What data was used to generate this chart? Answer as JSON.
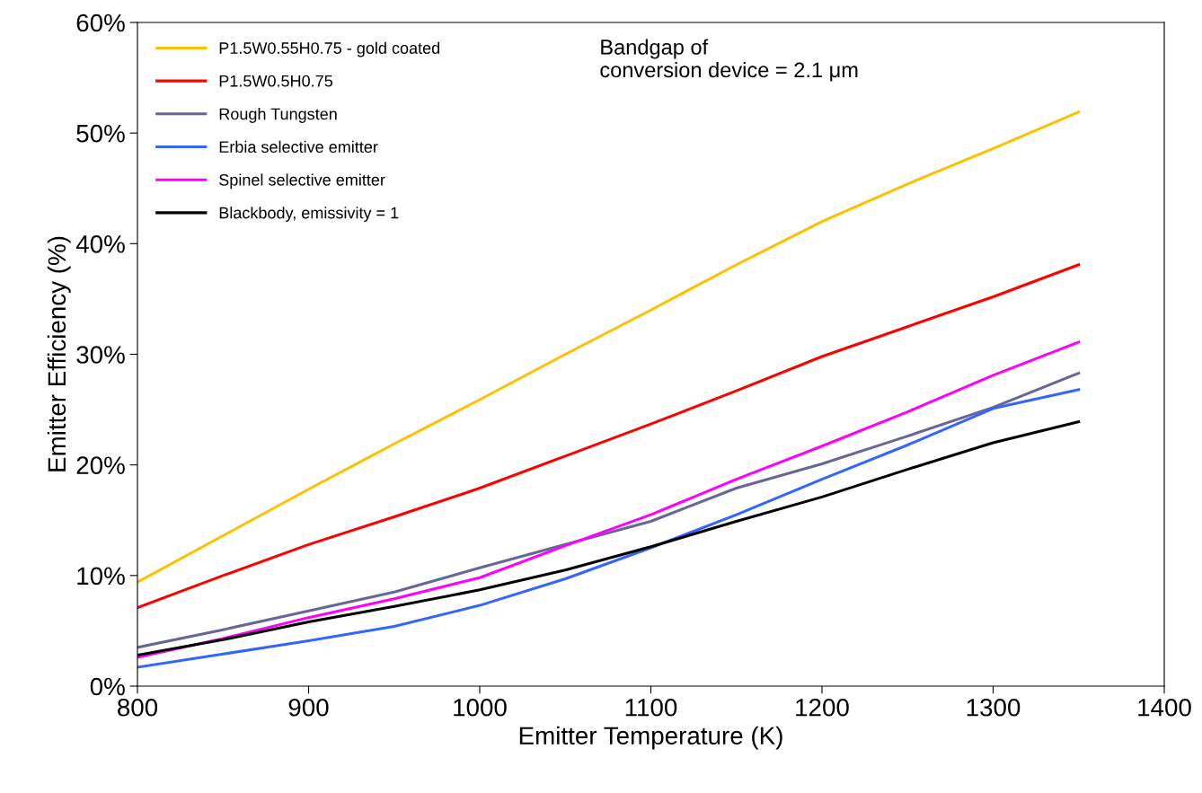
{
  "chart_data": {
    "type": "line",
    "xlabel": "Emitter Temperature (K)",
    "ylabel": "Emitter Efficiency (%)",
    "x": [
      800,
      850,
      900,
      950,
      1000,
      1050,
      1100,
      1150,
      1200,
      1250,
      1300,
      1350
    ],
    "series": [
      {
        "name": "P1.5W0.55H0.75 - gold coated",
        "color": "#ffc000",
        "values": [
          9.4,
          13.6,
          17.8,
          21.9,
          25.9,
          30.0,
          34.0,
          38.1,
          42.0,
          45.4,
          48.6,
          51.9
        ]
      },
      {
        "name": "P1.5W0.5H0.75",
        "color": "#ff0000",
        "values": [
          7.1,
          10.0,
          12.8,
          15.3,
          17.9,
          20.8,
          23.7,
          26.7,
          29.8,
          32.5,
          35.2,
          38.1
        ]
      },
      {
        "name": "Rough Tungsten",
        "color": "#666699",
        "values": [
          3.5,
          5.1,
          6.8,
          8.5,
          10.7,
          12.8,
          14.9,
          17.9,
          20.1,
          22.6,
          25.2,
          28.3
        ]
      },
      {
        "name": "Erbia selective emitter",
        "color": "#3366ff",
        "values": [
          1.7,
          2.9,
          4.1,
          5.4,
          7.3,
          9.7,
          12.5,
          15.5,
          18.7,
          21.8,
          25.1,
          26.8
        ]
      },
      {
        "name": "Spinel selective emitter",
        "color": "#ff00ff",
        "values": [
          2.6,
          4.3,
          6.2,
          7.9,
          9.8,
          12.7,
          15.5,
          18.7,
          21.7,
          24.8,
          28.1,
          31.1
        ]
      },
      {
        "name": "Blackbody, emissivity = 1",
        "color": "#000000",
        "values": [
          2.8,
          4.2,
          5.8,
          7.2,
          8.7,
          10.5,
          12.6,
          14.9,
          17.1,
          19.6,
          22.0,
          23.9
        ]
      }
    ],
    "xlim": [
      800,
      1400
    ],
    "xticks": [
      800,
      900,
      1000,
      1100,
      1200,
      1300,
      1400
    ],
    "ylim": [
      0,
      60
    ],
    "yticks": [
      {
        "value": 0,
        "label": "0%"
      },
      {
        "value": 10,
        "label": "10%"
      },
      {
        "value": 20,
        "label": "20%"
      },
      {
        "value": 30,
        "label": "30%"
      },
      {
        "value": 40,
        "label": "40%"
      },
      {
        "value": 50,
        "label": "50%"
      },
      {
        "value": 60,
        "label": "60%"
      }
    ],
    "annotations": [
      "Bandgap of\nconversion device = 2.1 μm"
    ],
    "legend": "top left",
    "grid": false,
    "marker": "none",
    "line_style": "solid"
  }
}
